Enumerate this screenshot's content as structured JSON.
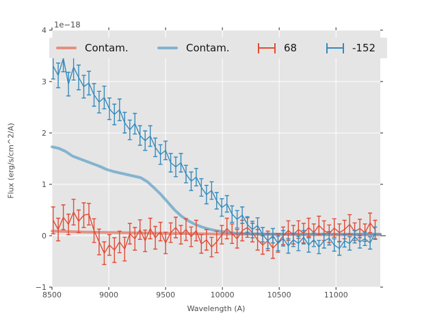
{
  "figure": {
    "offset_text": "1e−18",
    "xlabel": "Wavelength (A)",
    "ylabel": "Flux (erg/s/cm^2/A)",
    "background_color": "#ffffff",
    "plot_background_color": "#e5e5e5",
    "grid_color": "#ffffff",
    "tick_color": "#262626",
    "label_color": "#4d4d4d"
  },
  "legend": {
    "position": "upper center, 4 columns, inside axes",
    "background_color": "#e5e5e5",
    "text_color": "#141414",
    "items": [
      {
        "label": "Contam.",
        "key_type": "line",
        "color": "#e24a33",
        "opacity": 0.55
      },
      {
        "label": "Contam.",
        "key_type": "line",
        "color": "#348abd",
        "opacity": 0.55
      },
      {
        "label": "68",
        "key_type": "errorbar",
        "color": "#e24a33",
        "opacity": 1
      },
      {
        "label": "-152",
        "key_type": "errorbar",
        "color": "#348abd",
        "opacity": 1
      }
    ]
  },
  "chart_data": {
    "type": "line",
    "subtype": "spectrum with errorbars",
    "title": "",
    "xlabel": "Wavelength (A)",
    "ylabel": "Flux (erg/s/cm^2/A)",
    "y_scale_offset_text": "1e−18",
    "xlim": [
      8500,
      11390
    ],
    "ylim": [
      -1,
      4
    ],
    "grid": true,
    "xticks": {
      "values": [
        8500,
        9000,
        9500,
        10000,
        10500,
        11000
      ],
      "labels": [
        "8500",
        "9000",
        "9500",
        "10000",
        "10500",
        "11000"
      ]
    },
    "yticks": {
      "values": [
        -1,
        0,
        1,
        2,
        3,
        4
      ],
      "labels": [
        "−1",
        "0",
        "1",
        "2",
        "3",
        "4"
      ]
    },
    "series": [
      {
        "id": "contam-red",
        "name": "Contam.",
        "style": "line",
        "color": "#e24a33",
        "opacity": 0.55,
        "linewidth": 4,
        "points": [
          [
            8500,
            0.09
          ],
          [
            8800,
            0.07
          ],
          [
            9100,
            0.06
          ],
          [
            9400,
            0.05
          ],
          [
            9700,
            0.04
          ],
          [
            10000,
            0.03
          ],
          [
            10400,
            0.03
          ],
          [
            10800,
            0.02
          ],
          [
            11390,
            0.02
          ]
        ]
      },
      {
        "id": "contam-blue",
        "name": "Contam.",
        "style": "line",
        "color": "#348abd",
        "opacity": 0.55,
        "linewidth": 4,
        "points": [
          [
            8500,
            1.73
          ],
          [
            8560,
            1.7
          ],
          [
            8620,
            1.64
          ],
          [
            8680,
            1.55
          ],
          [
            8740,
            1.5
          ],
          [
            8800,
            1.45
          ],
          [
            8860,
            1.4
          ],
          [
            8920,
            1.35
          ],
          [
            8980,
            1.29
          ],
          [
            9040,
            1.25
          ],
          [
            9100,
            1.22
          ],
          [
            9160,
            1.19
          ],
          [
            9220,
            1.16
          ],
          [
            9280,
            1.13
          ],
          [
            9340,
            1.05
          ],
          [
            9400,
            0.93
          ],
          [
            9460,
            0.8
          ],
          [
            9520,
            0.65
          ],
          [
            9580,
            0.5
          ],
          [
            9640,
            0.38
          ],
          [
            9700,
            0.29
          ],
          [
            9760,
            0.22
          ],
          [
            9820,
            0.17
          ],
          [
            9880,
            0.13
          ],
          [
            9940,
            0.1
          ],
          [
            10000,
            0.08
          ],
          [
            10060,
            0.06
          ],
          [
            10120,
            0.05
          ],
          [
            10200,
            0.04
          ],
          [
            10350,
            0.03
          ],
          [
            10600,
            0.03
          ],
          [
            11000,
            0.03
          ],
          [
            11390,
            0.03
          ]
        ]
      },
      {
        "id": "eb-68",
        "name": "68",
        "style": "errorbar",
        "color": "#e24a33",
        "linewidth": 1.4,
        "x_start": 8510,
        "x_step": 45,
        "y": [
          0.3,
          0.12,
          0.36,
          0.22,
          0.46,
          0.28,
          0.4,
          0.42,
          0.1,
          -0.12,
          -0.34,
          -0.18,
          -0.28,
          -0.12,
          -0.26,
          0.04,
          -0.06,
          0.12,
          -0.1,
          0.14,
          -0.04,
          0.08,
          -0.14,
          0.06,
          0.16,
          0.02,
          0.12,
          -0.02,
          0.1,
          -0.16,
          -0.08,
          -0.22,
          -0.12,
          0.02,
          0.14,
          0.04,
          -0.06,
          0.1,
          0.16,
          0.06,
          -0.08,
          -0.18,
          -0.1,
          -0.24,
          -0.14,
          0.0,
          0.1,
          0.02,
          0.12,
          0.05,
          0.16,
          0.06,
          0.2,
          0.1,
          0.04,
          0.15,
          0.06,
          0.12,
          0.22,
          0.08,
          0.14,
          0.06,
          0.25,
          0.12
        ],
        "yerr": [
          0.26,
          0.22,
          0.24,
          0.2,
          0.25,
          0.22,
          0.24,
          0.21,
          0.23,
          0.25,
          0.22,
          0.2,
          0.24,
          0.21,
          0.23,
          0.2,
          0.22,
          0.19,
          0.21,
          0.2,
          0.22,
          0.18,
          0.21,
          0.19,
          0.2,
          0.18,
          0.21,
          0.19,
          0.2,
          0.18,
          0.2,
          0.19,
          0.21,
          0.18,
          0.2,
          0.19,
          0.18,
          0.2,
          0.19,
          0.18,
          0.2,
          0.18,
          0.19,
          0.2,
          0.18,
          0.17,
          0.19,
          0.18,
          0.17,
          0.19,
          0.18,
          0.17,
          0.18,
          0.19,
          0.17,
          0.18,
          0.17,
          0.18,
          0.19,
          0.17,
          0.18,
          0.17,
          0.19,
          0.18
        ]
      },
      {
        "id": "eb-neg152",
        "name": "-152",
        "style": "errorbar",
        "color": "#348abd",
        "linewidth": 1.4,
        "x_start": 8510,
        "x_step": 45,
        "y": [
          3.3,
          3.12,
          3.45,
          2.95,
          3.28,
          3.08,
          2.9,
          2.97,
          2.74,
          2.6,
          2.69,
          2.47,
          2.36,
          2.45,
          2.2,
          2.06,
          2.18,
          1.95,
          1.85,
          1.94,
          1.72,
          1.58,
          1.66,
          1.42,
          1.34,
          1.42,
          1.2,
          1.06,
          1.14,
          0.94,
          0.8,
          0.88,
          0.68,
          0.55,
          0.62,
          0.42,
          0.32,
          0.4,
          0.22,
          0.12,
          0.2,
          0.02,
          -0.1,
          0.0,
          -0.15,
          -0.05,
          -0.2,
          -0.08,
          -0.15,
          -0.03,
          -0.18,
          -0.08,
          -0.22,
          -0.1,
          -0.05,
          -0.18,
          -0.25,
          -0.1,
          -0.15,
          -0.02,
          -0.12,
          -0.06,
          -0.14,
          0.05
        ],
        "yerr": [
          0.25,
          0.24,
          0.26,
          0.23,
          0.25,
          0.24,
          0.22,
          0.23,
          0.22,
          0.21,
          0.22,
          0.21,
          0.2,
          0.21,
          0.2,
          0.19,
          0.2,
          0.19,
          0.19,
          0.2,
          0.18,
          0.19,
          0.18,
          0.18,
          0.19,
          0.18,
          0.17,
          0.18,
          0.17,
          0.17,
          0.18,
          0.17,
          0.16,
          0.17,
          0.16,
          0.16,
          0.17,
          0.16,
          0.15,
          0.16,
          0.15,
          0.14,
          0.15,
          0.14,
          0.14,
          0.15,
          0.14,
          0.13,
          0.14,
          0.13,
          0.14,
          0.13,
          0.13,
          0.14,
          0.13,
          0.12,
          0.13,
          0.12,
          0.13,
          0.12,
          0.12,
          0.13,
          0.12,
          0.12
        ]
      }
    ]
  }
}
